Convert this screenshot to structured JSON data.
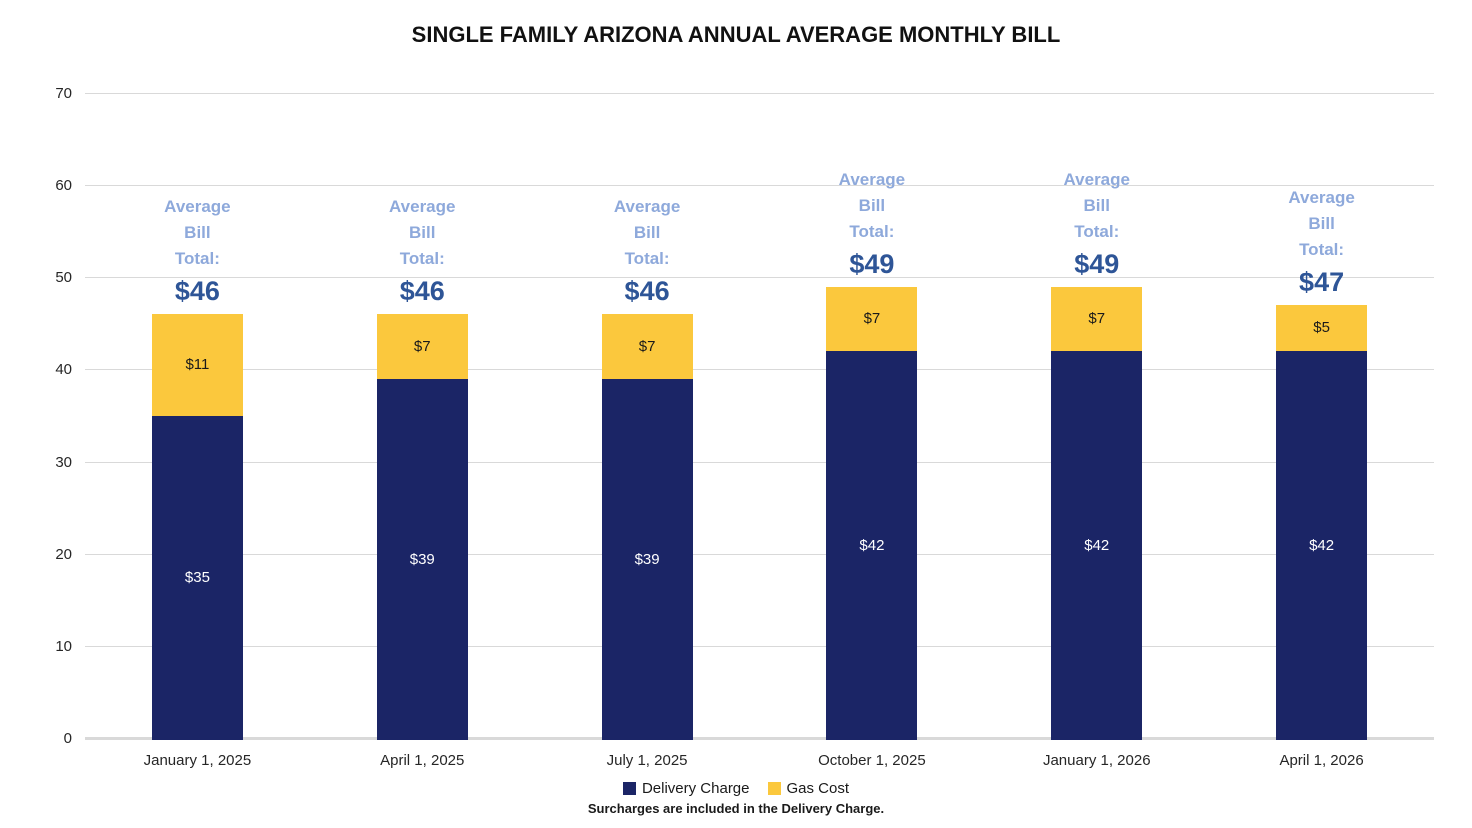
{
  "title": "SINGLE FAMILY ARIZONA ANNUAL AVERAGE MONTHLY BILL",
  "footnote": "Surcharges are included in the Delivery Charge.",
  "colors": {
    "delivery": "#1b2566",
    "gas": "#fbc83d",
    "total_label": "#2e5597",
    "total_caption": "#8ea9db",
    "gridline": "#d9d9d9"
  },
  "legend": {
    "items": [
      {
        "label": "Delivery Charge",
        "color": "#1b2566"
      },
      {
        "label": "Gas Cost",
        "color": "#fbc83d"
      }
    ]
  },
  "chart_data": {
    "type": "bar",
    "stacked": true,
    "title": "SINGLE FAMILY ARIZONA ANNUAL AVERAGE MONTHLY BILL",
    "categories": [
      "January 1, 2025",
      "April 1, 2025",
      "July 1, 2025",
      "October 1, 2025",
      "January 1, 2026",
      "April 1, 2026"
    ],
    "series": [
      {
        "name": "Delivery Charge",
        "color": "#1b2566",
        "values": [
          35,
          39,
          39,
          42,
          42,
          42
        ]
      },
      {
        "name": "Gas Cost",
        "color": "#fbc83d",
        "values": [
          11,
          7,
          7,
          7,
          7,
          5
        ]
      }
    ],
    "totals": [
      46,
      46,
      46,
      49,
      49,
      47
    ],
    "xlabel": "",
    "ylabel": "",
    "ylim": [
      0,
      70
    ],
    "yticks": [
      0,
      10,
      20,
      30,
      40,
      50,
      60,
      70
    ],
    "grid": true,
    "legend_position": "bottom"
  },
  "bars": [
    {
      "category": "January 1, 2025",
      "delivery_label": "$35",
      "gas_label": "$11",
      "total_caption": [
        "Average",
        "Bill",
        "Total:"
      ],
      "total_label": "$46"
    },
    {
      "category": "April 1, 2025",
      "delivery_label": "$39",
      "gas_label": "$7",
      "total_caption": [
        "Average",
        "Bill",
        "Total:"
      ],
      "total_label": "$46"
    },
    {
      "category": "July 1, 2025",
      "delivery_label": "$39",
      "gas_label": "$7",
      "total_caption": [
        "Average",
        "Bill",
        "Total:"
      ],
      "total_label": "$46"
    },
    {
      "category": "October 1, 2025",
      "delivery_label": "$42",
      "gas_label": "$7",
      "total_caption": [
        "Average",
        "Bill",
        "Total:"
      ],
      "total_label": "$49"
    },
    {
      "category": "January 1, 2026",
      "delivery_label": "$42",
      "gas_label": "$7",
      "total_caption": [
        "Average",
        "Bill",
        "Total:"
      ],
      "total_label": "$49"
    },
    {
      "category": "April 1, 2026",
      "delivery_label": "$42",
      "gas_label": "$5",
      "total_caption": [
        "Average",
        "Bill",
        "Total:"
      ],
      "total_label": "$47"
    }
  ],
  "y_tick_labels": [
    "0",
    "10",
    "20",
    "30",
    "40",
    "50",
    "60",
    "70"
  ]
}
